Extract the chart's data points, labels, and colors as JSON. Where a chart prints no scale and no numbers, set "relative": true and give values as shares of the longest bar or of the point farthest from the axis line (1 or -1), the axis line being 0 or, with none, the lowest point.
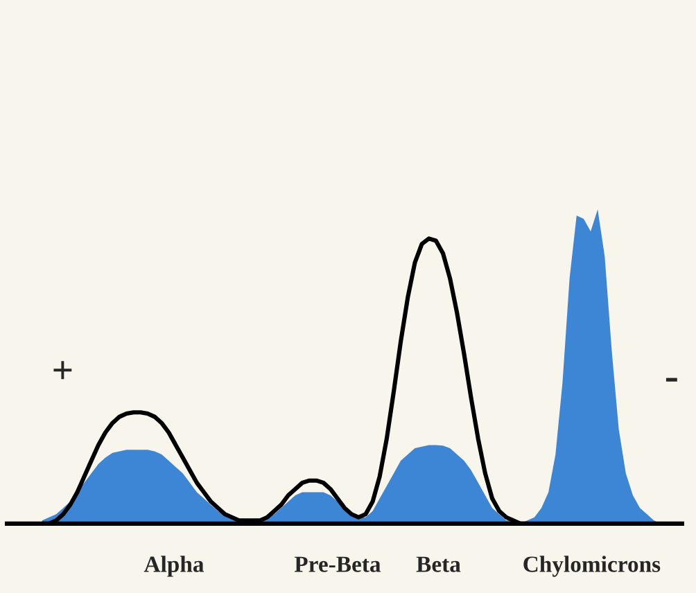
{
  "chart_data": {
    "type": "area",
    "relative": true,
    "categories": [
      null,
      null,
      null,
      null,
      null,
      null,
      null,
      null,
      null,
      null,
      null,
      null,
      null,
      null,
      null,
      null,
      null,
      null,
      null,
      null,
      null,
      null,
      null,
      null,
      null,
      null,
      null,
      null,
      null,
      null,
      null,
      null,
      null,
      null,
      null,
      null,
      null,
      null,
      null,
      null,
      null,
      null,
      null,
      null,
      null,
      null,
      null,
      null,
      null,
      null,
      null,
      null,
      null,
      null,
      null,
      null,
      null,
      null,
      null,
      null,
      null,
      null,
      null,
      null,
      null,
      null,
      null,
      null,
      null,
      null,
      null,
      null,
      null,
      null,
      null,
      null,
      null,
      null,
      null,
      null,
      null,
      null,
      null,
      null,
      null,
      null,
      null,
      null,
      null
    ],
    "series": [
      {
        "color": "#3d86d6",
        "values": [
          0.01,
          0.02,
          0.03,
          0.05,
          0.07,
          0.1,
          0.13,
          0.16,
          0.19,
          0.21,
          0.225,
          0.23,
          0.235,
          0.235,
          0.235,
          0.235,
          0.23,
          0.22,
          0.2,
          0.18,
          0.16,
          0.13,
          0.1,
          0.08,
          0.06,
          0.04,
          0.03,
          0.02,
          0.01,
          0.01,
          0.01,
          0.01,
          0.02,
          0.03,
          0.05,
          0.07,
          0.09,
          0.1,
          0.1,
          0.1,
          0.1,
          0.09,
          0.07,
          0.05,
          0.03,
          0.02,
          0.02,
          0.04,
          0.08,
          0.12,
          0.16,
          0.2,
          0.22,
          0.24,
          0.245,
          0.25,
          0.25,
          0.248,
          0.24,
          0.22,
          0.2,
          0.17,
          0.13,
          0.09,
          0.05,
          0.03,
          0.01,
          0.01,
          0,
          0.01,
          0.02,
          0.05,
          0.1,
          0.22,
          0.45,
          0.78,
          0.98,
          0.97,
          0.93,
          1.0,
          0.85,
          0.55,
          0.3,
          0.16,
          0.09,
          0.05,
          0.03,
          0.01,
          0
        ]
      },
      {
        "type": "line",
        "color": "#000000",
        "values": [
          0,
          0,
          0.01,
          0.03,
          0.06,
          0.1,
          0.15,
          0.2,
          0.25,
          0.29,
          0.32,
          0.34,
          0.35,
          0.354,
          0.354,
          0.35,
          0.34,
          0.32,
          0.29,
          0.25,
          0.21,
          0.17,
          0.13,
          0.1,
          0.07,
          0.05,
          0.03,
          0.02,
          0.01,
          0.01,
          0.01,
          0.01,
          0.02,
          0.04,
          0.06,
          0.09,
          0.11,
          0.13,
          0.137,
          0.137,
          0.13,
          0.11,
          0.08,
          0.05,
          0.03,
          0.02,
          0.03,
          0.07,
          0.15,
          0.27,
          0.42,
          0.58,
          0.72,
          0.83,
          0.89,
          0.907,
          0.9,
          0.86,
          0.78,
          0.67,
          0.54,
          0.4,
          0.27,
          0.16,
          0.08,
          0.04,
          0.02,
          0.01,
          0,
          0,
          null,
          null,
          null,
          null,
          null,
          null,
          null,
          null,
          null,
          null,
          null,
          null,
          null,
          null,
          null,
          null,
          null,
          null,
          null
        ]
      }
    ],
    "annotations": [
      "+",
      "-",
      "Alpha",
      "Pre-Beta",
      "Beta",
      "Chylomicrons"
    ]
  }
}
